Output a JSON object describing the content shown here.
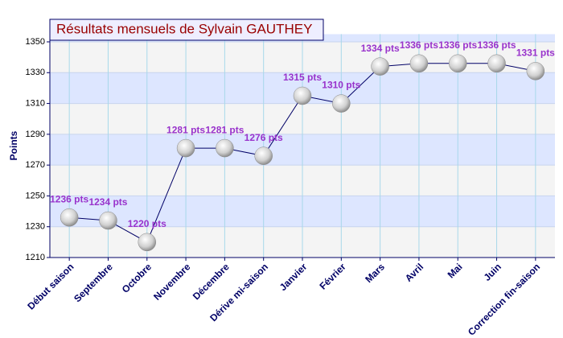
{
  "chart_data": {
    "type": "line",
    "title": "Résultats mensuels de Sylvain GAUTHEY",
    "y_label": "Points",
    "categories": [
      "Début saison",
      "Septembre",
      "Octobre",
      "Novembre",
      "Décembre",
      "Dérive mi-saison",
      "Janvier",
      "Février",
      "Mars",
      "Avril",
      "Mai",
      "Juin",
      "Correction fin-saison"
    ],
    "series": [
      {
        "name": "Points",
        "color": "#000066",
        "values": [
          1236,
          1234,
          1220,
          1281,
          1281,
          1276,
          1315,
          1310,
          1334,
          1336,
          1336,
          1336,
          1331
        ],
        "value_labels": [
          "1236 pts",
          "1234 pts",
          "1220 pts",
          "1281 pts",
          "1281 pts",
          "1276 pts",
          "1315 pts",
          "1310 pts",
          "1334 pts",
          "1336 pts",
          "1336 pts",
          "1336 pts",
          "1331 pts"
        ]
      }
    ],
    "ylim": [
      1210,
      1355
    ],
    "yticks": [
      1210,
      1230,
      1250,
      1270,
      1290,
      1310,
      1330,
      1350
    ],
    "grid": true
  }
}
